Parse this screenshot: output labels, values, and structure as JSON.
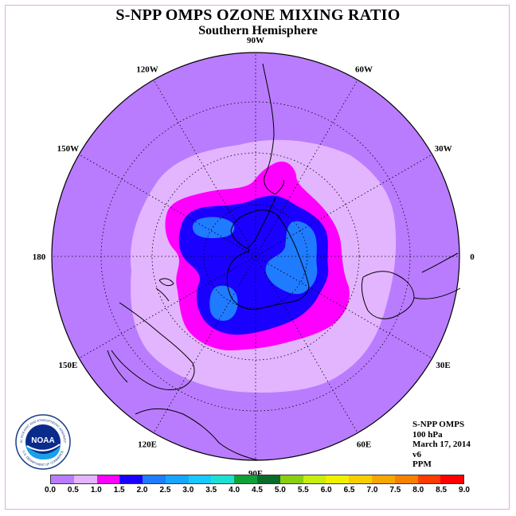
{
  "title": "S-NPP OMPS OZONE MIXING RATIO",
  "subtitle": "Southern Hemisphere",
  "logo": {
    "text": "NOAA",
    "ring_text_top": "NATIONAL OCEANIC AND ATMOSPHERIC ADMINISTRATION",
    "ring_text_bottom": "U.S. DEPARTMENT OF COMMERCE"
  },
  "info": {
    "instrument": "S-NPP OMPS",
    "level": "100 hPa",
    "date": "March 17, 2014",
    "version": "v6",
    "units": "PPM"
  },
  "longitude_labels": [
    {
      "lon": 90,
      "text": "90W"
    },
    {
      "lon": 60,
      "text": "60W"
    },
    {
      "lon": 30,
      "text": "30W"
    },
    {
      "lon": 0,
      "text": "0"
    },
    {
      "lon": -30,
      "text": "30E"
    },
    {
      "lon": -60,
      "text": "60E"
    },
    {
      "lon": -90,
      "text": "90E"
    },
    {
      "lon": -120,
      "text": "120E"
    },
    {
      "lon": -150,
      "text": "150E"
    },
    {
      "lon": 180,
      "text": "180"
    },
    {
      "lon": 150,
      "text": "150W"
    },
    {
      "lon": 120,
      "text": "120W"
    }
  ],
  "colorbar": {
    "ticks": [
      "0.0",
      "0.5",
      "1.0",
      "1.5",
      "2.0",
      "2.5",
      "3.0",
      "3.5",
      "4.0",
      "4.5",
      "5.0",
      "5.5",
      "6.0",
      "6.5",
      "7.0",
      "7.5",
      "8.0",
      "8.5",
      "9.0"
    ],
    "colors": [
      "#b97cff",
      "#e3b5ff",
      "#ff00ff",
      "#1a00ff",
      "#1f7bff",
      "#17a6ff",
      "#19c8ff",
      "#1ee0d2",
      "#12a03a",
      "#0a6a2a",
      "#8ad012",
      "#c6ee10",
      "#f0f000",
      "#f7cf00",
      "#f5a800",
      "#f58300",
      "#ff3c00",
      "#ff0000",
      "#8c5a3c"
    ],
    "bounds": [
      0.0,
      9.0
    ]
  },
  "field_colors": {
    "ocean": "#b97cff",
    "band_0_5": "#e3b5ff",
    "band_1_0": "#ff00ff",
    "band_1_5": "#1a00ff",
    "band_2_0": "#1f7bff"
  }
}
